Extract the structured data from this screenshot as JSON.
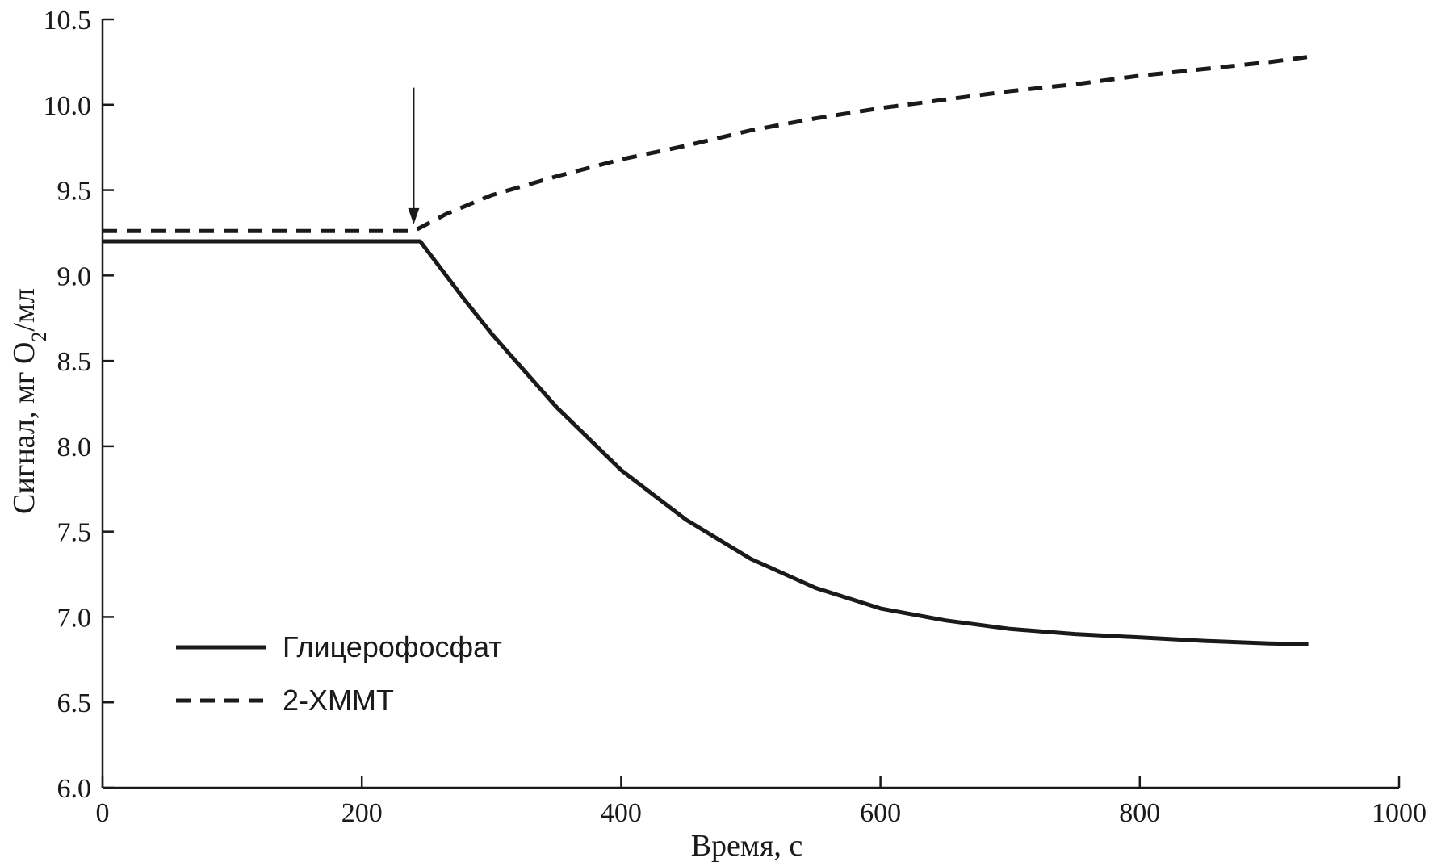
{
  "chart_data": {
    "type": "line",
    "title": "",
    "xlabel": "Время, с",
    "ylabel": {
      "prefix": "Сигнал, мг O",
      "subscript": "2",
      "suffix": "/мл"
    },
    "xlim": [
      0,
      1000
    ],
    "ylim": [
      6.0,
      10.5
    ],
    "xticks": [
      0,
      200,
      400,
      600,
      800,
      1000
    ],
    "xtick_labels": [
      "0",
      "200",
      "400",
      "600",
      "800",
      "1000"
    ],
    "yticks": [
      6.0,
      6.5,
      7.0,
      7.5,
      8.0,
      8.5,
      9.0,
      9.5,
      10.0,
      10.5
    ],
    "ytick_labels": [
      "6.0",
      "6.5",
      "7.0",
      "7.5",
      "8.0",
      "8.5",
      "9.0",
      "9.5",
      "10.0",
      "10.5"
    ],
    "grid": false,
    "legend_position": "lower-left",
    "annotation": {
      "type": "arrow",
      "x": 240,
      "y_start": 10.1,
      "y_end": 9.3
    },
    "series": [
      {
        "name": "Глицерофосфат",
        "style": "solid",
        "color": "#1a1a1a",
        "x": [
          0,
          245,
          260,
          280,
          300,
          350,
          400,
          450,
          500,
          550,
          600,
          650,
          700,
          750,
          800,
          850,
          900,
          930
        ],
        "y": [
          9.2,
          9.2,
          9.05,
          8.85,
          8.66,
          8.23,
          7.86,
          7.57,
          7.34,
          7.17,
          7.05,
          6.98,
          6.93,
          6.9,
          6.88,
          6.86,
          6.845,
          6.84
        ]
      },
      {
        "name": "2-ХММТ",
        "style": "dashed",
        "color": "#1a1a1a",
        "x": [
          0,
          240,
          250,
          265,
          300,
          350,
          400,
          450,
          500,
          550,
          600,
          650,
          700,
          750,
          800,
          850,
          900,
          930
        ],
        "y": [
          9.26,
          9.26,
          9.3,
          9.36,
          9.47,
          9.58,
          9.68,
          9.76,
          9.85,
          9.92,
          9.98,
          10.03,
          10.08,
          10.12,
          10.17,
          10.21,
          10.25,
          10.28
        ]
      }
    ]
  }
}
